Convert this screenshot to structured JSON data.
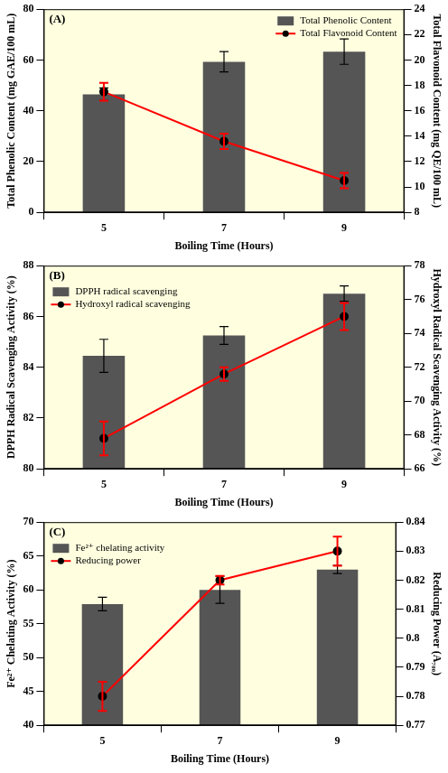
{
  "chart_data": [
    {
      "type": "bar",
      "title": "(A)",
      "x_label": "Boiling Time (Hours)",
      "y_label": "Total Phenolic Content (mg GAE/100 mL)",
      "y2_label": "Total Flavonoid Content (mg QE/100 mL)",
      "categories": [
        "5",
        "7",
        "9"
      ],
      "ylim": [
        0,
        80
      ],
      "yticks": [
        0,
        20,
        40,
        60,
        80
      ],
      "y2lim": [
        8,
        24
      ],
      "y2ticks": [
        8,
        10,
        12,
        14,
        16,
        18,
        20,
        22,
        24
      ],
      "grid": false,
      "legend": "top-right",
      "series": [
        {
          "name": "Total Phenolic Content",
          "type": "bar",
          "color": "#555555",
          "values": [
            46.5,
            59.3,
            63.3
          ],
          "errors": [
            2.5,
            4.0,
            5.0
          ]
        },
        {
          "name": "Total Flavonoid Content",
          "type": "line",
          "color": "#ff0000",
          "marker": "circle",
          "axis": "y2",
          "values": [
            17.5,
            13.6,
            10.5
          ],
          "errors": [
            0.7,
            0.6,
            0.6
          ]
        }
      ]
    },
    {
      "type": "bar",
      "title": "(B)",
      "x_label": "Boiling Time (Hours)",
      "y_label": "DPPH Radical Scavenging Activity (%)",
      "y2_label": "Hydroxyl Radical Scavenging Activity (%)",
      "categories": [
        "5",
        "7",
        "9"
      ],
      "ylim": [
        80,
        88
      ],
      "yticks": [
        80,
        82,
        84,
        86,
        88
      ],
      "y2lim": [
        66,
        78
      ],
      "y2ticks": [
        66,
        68,
        70,
        72,
        74,
        76,
        78
      ],
      "grid": false,
      "legend": "top-left",
      "series": [
        {
          "name": "DPPH radical scavenging",
          "type": "bar",
          "color": "#555555",
          "values": [
            84.45,
            85.25,
            86.9
          ],
          "errors": [
            0.65,
            0.35,
            0.3
          ]
        },
        {
          "name": "Hydroxyl radical scavenging",
          "type": "line",
          "color": "#ff0000",
          "marker": "circle",
          "axis": "y2",
          "values": [
            67.8,
            71.6,
            75.0
          ],
          "errors": [
            1.0,
            0.4,
            0.8
          ]
        }
      ]
    },
    {
      "type": "bar",
      "title": "(C)",
      "x_label": "Boiling Time (Hours)",
      "y_label": "Fe²⁺ Chelating Activity (%)",
      "y2_label": "Reducing Power (A₇₀₀)",
      "categories": [
        "5",
        "7",
        "9"
      ],
      "ylim": [
        40,
        70
      ],
      "yticks": [
        40,
        45,
        50,
        55,
        60,
        65,
        70
      ],
      "y2lim": [
        0.77,
        0.84
      ],
      "y2ticks": [
        0.77,
        0.78,
        0.79,
        0.8,
        0.81,
        0.82,
        0.83,
        0.84
      ],
      "grid": false,
      "legend": "top-left",
      "series": [
        {
          "name": "Fe²⁺ chelating activity",
          "type": "bar",
          "color": "#555555",
          "values": [
            57.9,
            60.0,
            63.0
          ],
          "errors": [
            1.0,
            2.0,
            0.6
          ]
        },
        {
          "name": "Reducing power",
          "type": "line",
          "color": "#ff0000",
          "marker": "circle",
          "axis": "y2",
          "values": [
            0.78,
            0.82,
            0.83
          ],
          "errors": [
            0.005,
            0.0015,
            0.005
          ]
        }
      ]
    }
  ]
}
